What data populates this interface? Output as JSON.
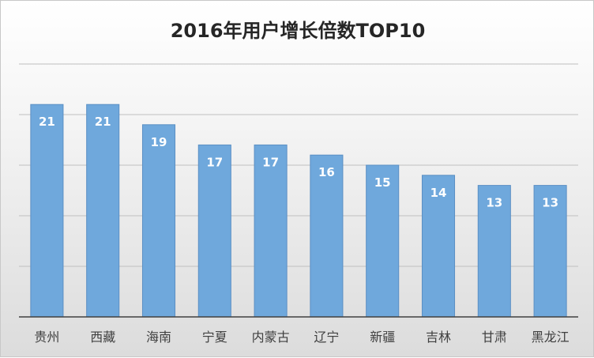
{
  "chart_data": {
    "type": "bar",
    "title": "2016年用户增长倍数TOP10",
    "categories": [
      "贵州",
      "西藏",
      "海南",
      "宁夏",
      "内蒙古",
      "辽宁",
      "新疆",
      "吉林",
      "甘肃",
      "黑龙江"
    ],
    "values": [
      21,
      21,
      19,
      17,
      17,
      16,
      15,
      14,
      13,
      13
    ],
    "data_labels": [
      "21",
      "21",
      "19",
      "17",
      "17",
      "16",
      "15",
      "14",
      "13",
      "13"
    ],
    "ylim": [
      0,
      25
    ],
    "y_gridlines": [
      5,
      10,
      15,
      20,
      25
    ],
    "grid": true,
    "bar_color": "#6fa8dc",
    "bar_edge_color": "#5b8fc4",
    "label_color": "#ffffff"
  }
}
